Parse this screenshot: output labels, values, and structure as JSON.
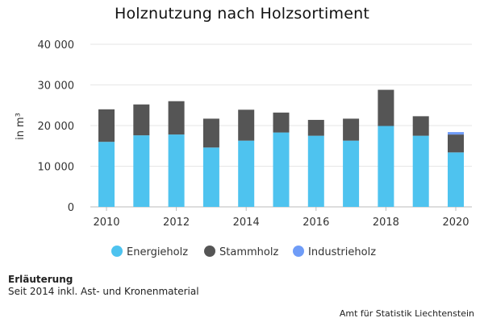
{
  "chart_data": {
    "type": "bar",
    "stacked": true,
    "title": "Holznutzung nach Holzsortiment",
    "ylabel": "in m³",
    "xlabel": "",
    "ylim": [
      0,
      40000
    ],
    "yticks": [
      0,
      10000,
      20000,
      30000,
      40000
    ],
    "ytick_labels": [
      "0",
      "10 000",
      "20 000",
      "30 000",
      "40 000"
    ],
    "categories": [
      2010,
      2011,
      2012,
      2013,
      2014,
      2015,
      2016,
      2017,
      2018,
      2019,
      2020
    ],
    "xtick_labels": [
      "2010",
      "2012",
      "2014",
      "2016",
      "2018",
      "2020"
    ],
    "grid": true,
    "legend_position": "bottom",
    "series": [
      {
        "name": "Energieholz",
        "color": "#4ec3ef",
        "values": [
          16000,
          17600,
          17800,
          14600,
          16300,
          18300,
          17500,
          16300,
          19900,
          17500,
          13400
        ]
      },
      {
        "name": "Stammholz",
        "color": "#555555",
        "values": [
          8000,
          7600,
          8200,
          7100,
          7600,
          4900,
          3900,
          5400,
          8900,
          4800,
          4400
        ]
      },
      {
        "name": "Industrieholz",
        "color": "#6f9cf7",
        "values": [
          0,
          0,
          0,
          0,
          0,
          0,
          0,
          0,
          0,
          0,
          600
        ]
      }
    ]
  },
  "note": {
    "title": "Erläuterung",
    "text": "Seit 2014 inkl. Ast- und Kronenmaterial"
  },
  "source": "Amt für Statistik Liechtenstein"
}
